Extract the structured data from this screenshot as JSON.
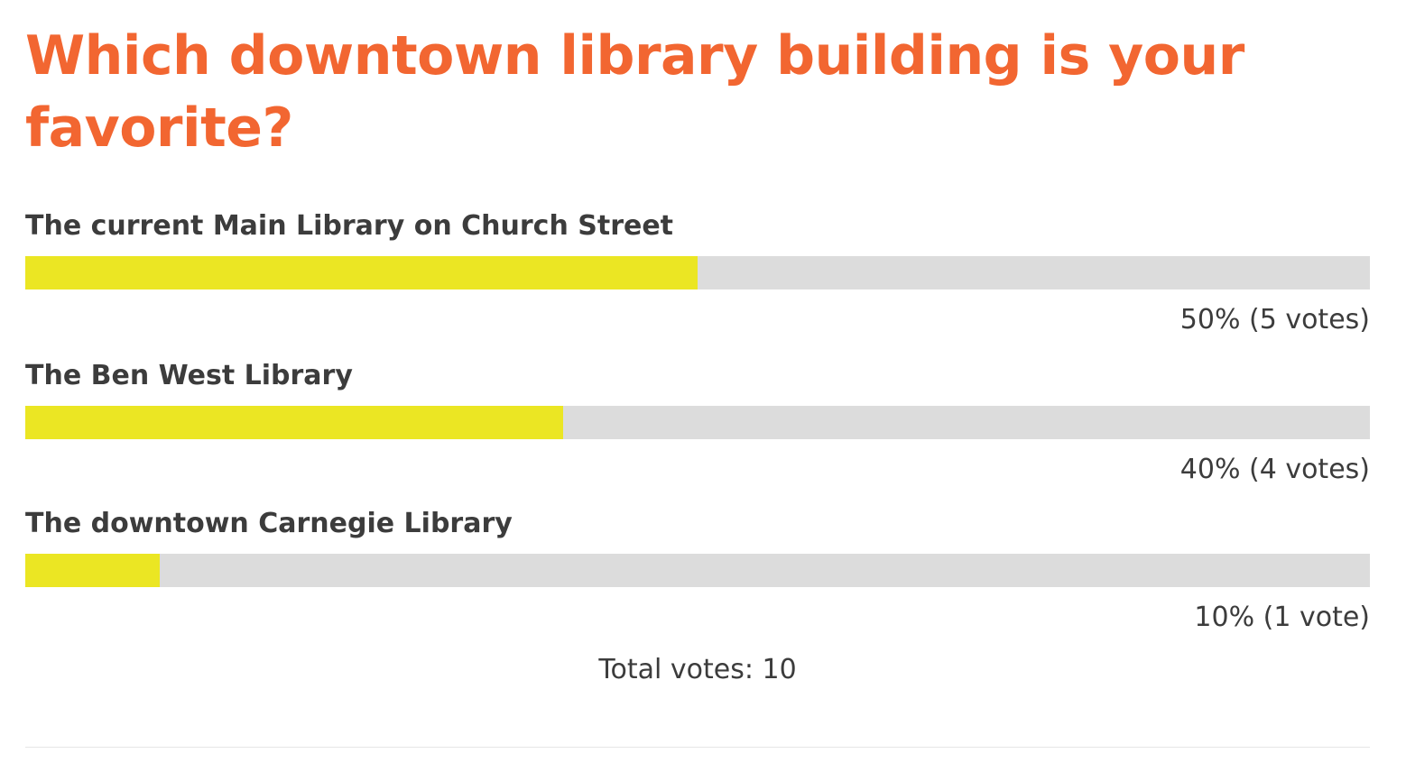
{
  "poll": {
    "title": "Which downtown library building is your favorite?",
    "options": [
      {
        "label": "The current Main Library on Church Street",
        "result": "50% (5 votes)",
        "share": 0.5
      },
      {
        "label": "The Ben West Library",
        "result": "40% (4 votes)",
        "share": 0.4
      },
      {
        "label": "The downtown Carnegie Library",
        "result": "10% (1 vote)",
        "share": 0.1
      }
    ],
    "total": "Total votes: 10"
  },
  "colors": {
    "title": "#f26631",
    "text": "#3c3c3c",
    "bar_fill": "#ebe623",
    "bar_track": "#dcdcdc"
  }
}
